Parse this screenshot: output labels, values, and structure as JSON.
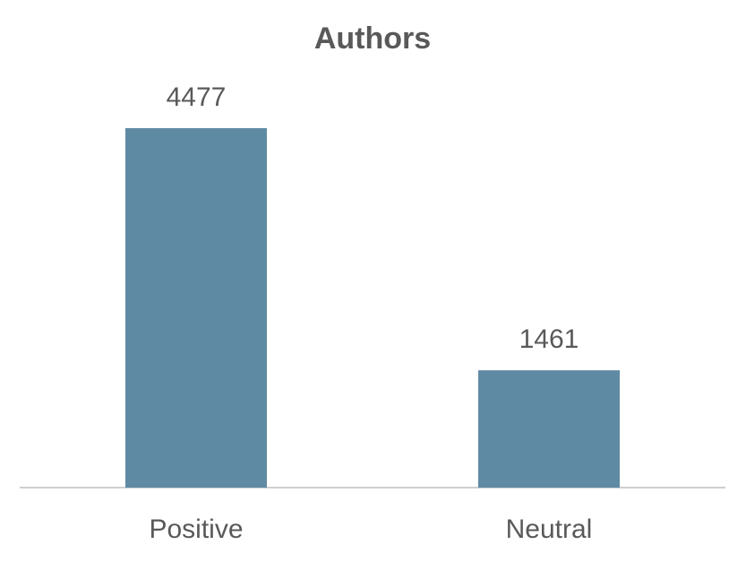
{
  "chart_data": {
    "type": "bar",
    "title": "Authors",
    "categories": [
      "Positive",
      "Neutral"
    ],
    "values": [
      4477,
      1461
    ],
    "color": "#5f8aa3"
  }
}
